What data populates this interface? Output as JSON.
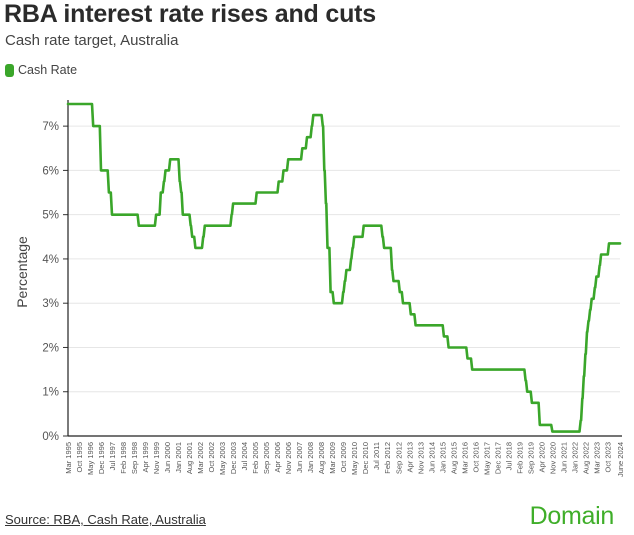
{
  "header": {
    "title": "RBA interest rate rises and cuts",
    "subtitle": "Cash rate target, Australia"
  },
  "legend": [
    {
      "label": "Cash Rate",
      "color": "#3aa62a"
    }
  ],
  "footer": {
    "source": "Source: RBA, Cash Rate, Australia",
    "brand": "Domain"
  },
  "chart_data": {
    "type": "line",
    "title": "RBA interest rate rises and cuts",
    "subtitle": "Cash rate target, Australia",
    "xlabel": "",
    "ylabel": "Percentage",
    "ylim": [
      0,
      7.5
    ],
    "yticks": [
      0,
      1,
      2,
      3,
      4,
      5,
      6,
      7
    ],
    "ytick_labels": [
      "0%",
      "1%",
      "2%",
      "3%",
      "4%",
      "5%",
      "6%",
      "7%"
    ],
    "grid": true,
    "legend_position": "top-left",
    "xtick_labels": [
      "Mar 1995",
      "Oct 1995",
      "May 1996",
      "Dec 1996",
      "Jul 1997",
      "Feb 1998",
      "Sep 1998",
      "Apr 1999",
      "Nov 1999",
      "Jun 2000",
      "Jan 2001",
      "Aug 2001",
      "Mar 2002",
      "Oct 2002",
      "May 2003",
      "Dec 2003",
      "Jul 2004",
      "Feb 2005",
      "Sep 2005",
      "Apr 2006",
      "Nov 2006",
      "Jun 2007",
      "Jan 2008",
      "Aug 2008",
      "Mar 2009",
      "Oct 2009",
      "May 2010",
      "Dec 2010",
      "Jul 2011",
      "Feb 2012",
      "Sep 2012",
      "Apr 2013",
      "Nov 2013",
      "Jun 2014",
      "Jan 2015",
      "Aug 2015",
      "Mar 2016",
      "Oct 2016",
      "May 2017",
      "Dec 2017",
      "Jul 2018",
      "Feb 2019",
      "Sep 2019",
      "Apr 2020",
      "Nov 2020",
      "Jun 2021",
      "Jan 2022",
      "Aug 2022",
      "Mar 2023",
      "Oct 2023",
      "June 2024"
    ],
    "series": [
      {
        "name": "Cash Rate",
        "color": "#3aa62a",
        "points": [
          [
            "1995-03",
            7.5
          ],
          [
            "1996-07",
            7.0
          ],
          [
            "1996-12",
            6.0
          ],
          [
            "1997-05",
            5.5
          ],
          [
            "1997-07",
            5.0
          ],
          [
            "1998-12",
            4.75
          ],
          [
            "1999-11",
            5.0
          ],
          [
            "2000-02",
            5.5
          ],
          [
            "2000-04",
            5.75
          ],
          [
            "2000-05",
            6.0
          ],
          [
            "2000-08",
            6.25
          ],
          [
            "2001-02",
            5.75
          ],
          [
            "2001-03",
            5.5
          ],
          [
            "2001-04",
            5.0
          ],
          [
            "2001-09",
            4.75
          ],
          [
            "2001-10",
            4.5
          ],
          [
            "2001-12",
            4.25
          ],
          [
            "2002-05",
            4.5
          ],
          [
            "2002-06",
            4.75
          ],
          [
            "2003-11",
            5.0
          ],
          [
            "2003-12",
            5.25
          ],
          [
            "2005-03",
            5.5
          ],
          [
            "2006-05",
            5.75
          ],
          [
            "2006-08",
            6.0
          ],
          [
            "2006-11",
            6.25
          ],
          [
            "2007-08",
            6.5
          ],
          [
            "2007-11",
            6.75
          ],
          [
            "2008-02",
            7.0
          ],
          [
            "2008-03",
            7.25
          ],
          [
            "2008-09",
            7.0
          ],
          [
            "2008-10",
            6.0
          ],
          [
            "2008-11",
            5.25
          ],
          [
            "2008-12",
            4.25
          ],
          [
            "2009-02",
            3.25
          ],
          [
            "2009-04",
            3.0
          ],
          [
            "2009-10",
            3.25
          ],
          [
            "2009-11",
            3.5
          ],
          [
            "2009-12",
            3.75
          ],
          [
            "2010-03",
            4.0
          ],
          [
            "2010-04",
            4.25
          ],
          [
            "2010-05",
            4.5
          ],
          [
            "2010-11",
            4.75
          ],
          [
            "2011-11",
            4.5
          ],
          [
            "2011-12",
            4.25
          ],
          [
            "2012-05",
            3.75
          ],
          [
            "2012-06",
            3.5
          ],
          [
            "2012-10",
            3.25
          ],
          [
            "2012-12",
            3.0
          ],
          [
            "2013-05",
            2.75
          ],
          [
            "2013-08",
            2.5
          ],
          [
            "2015-02",
            2.25
          ],
          [
            "2015-05",
            2.0
          ],
          [
            "2016-05",
            1.75
          ],
          [
            "2016-08",
            1.5
          ],
          [
            "2019-06",
            1.25
          ],
          [
            "2019-07",
            1.0
          ],
          [
            "2019-10",
            0.75
          ],
          [
            "2020-03",
            0.25
          ],
          [
            "2020-11",
            0.1
          ],
          [
            "2022-05",
            0.35
          ],
          [
            "2022-06",
            0.85
          ],
          [
            "2022-07",
            1.35
          ],
          [
            "2022-08",
            1.85
          ],
          [
            "2022-09",
            2.35
          ],
          [
            "2022-10",
            2.6
          ],
          [
            "2022-11",
            2.85
          ],
          [
            "2022-12",
            3.1
          ],
          [
            "2023-02",
            3.35
          ],
          [
            "2023-03",
            3.6
          ],
          [
            "2023-05",
            3.85
          ],
          [
            "2023-06",
            4.1
          ],
          [
            "2023-11",
            4.35
          ],
          [
            "2024-06",
            4.35
          ]
        ]
      }
    ]
  }
}
